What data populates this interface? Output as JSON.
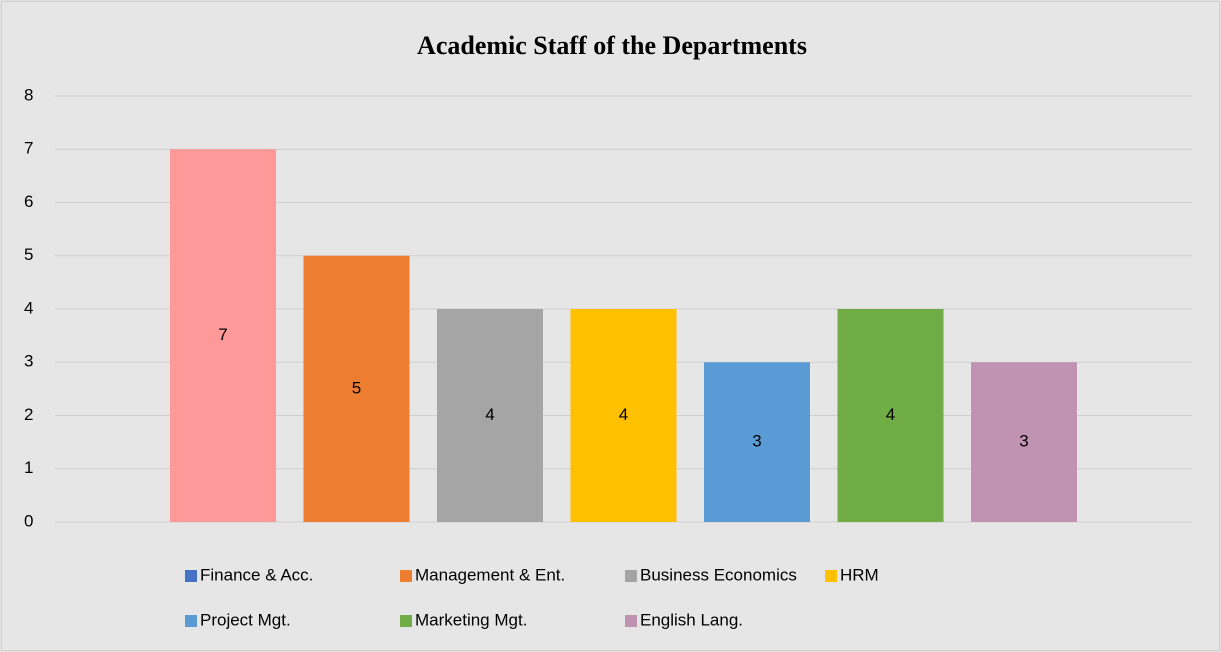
{
  "chart_data": {
    "type": "bar",
    "title": "Academic Staff  of the Departments",
    "series": [
      {
        "name": "Finance & Acc.",
        "color": "#4472c4",
        "bar_color": "#ff9999",
        "values": [
          7
        ]
      },
      {
        "name": "Management & Ent.",
        "color": "#ed7d31",
        "values": [
          5
        ]
      },
      {
        "name": "Business Economics",
        "color": "#a5a5a5",
        "values": [
          4
        ]
      },
      {
        "name": "HRM",
        "color": "#ffc000",
        "values": [
          4
        ]
      },
      {
        "name": "Project Mgt.",
        "color": "#5b9bd5",
        "values": [
          3
        ]
      },
      {
        "name": "Marketing Mgt.",
        "color": "#70ad47",
        "values": [
          4
        ]
      },
      {
        "name": "English Lang.",
        "color": "#c093b3",
        "values": [
          3
        ]
      }
    ],
    "ylim": [
      0,
      8
    ],
    "yticks": [
      0,
      1,
      2,
      3,
      4,
      5,
      6,
      7,
      8
    ],
    "grid": true,
    "data_labels": true,
    "legend": "bottom"
  }
}
